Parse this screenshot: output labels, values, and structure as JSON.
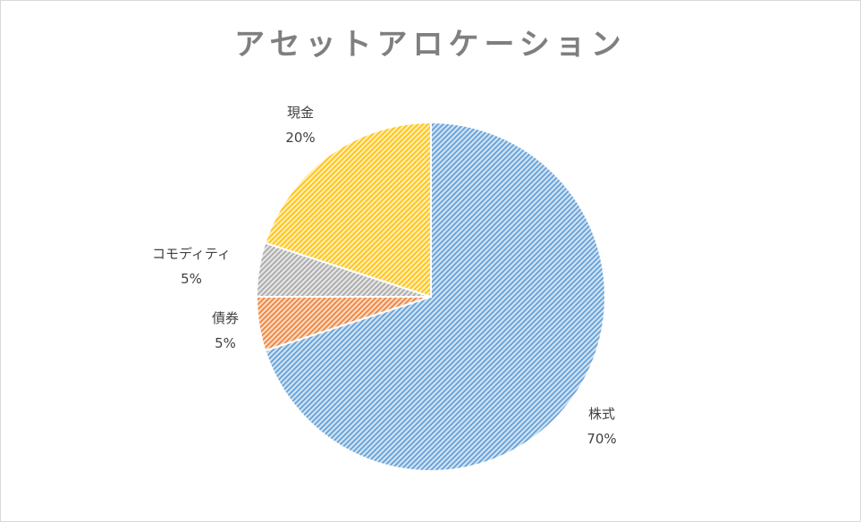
{
  "chart_data": {
    "type": "pie",
    "title": "アセットアロケーション",
    "slices": [
      {
        "label": "株式",
        "value": 70,
        "percent_label": "70%",
        "color": "#5b9bd5"
      },
      {
        "label": "債券",
        "value": 5,
        "percent_label": "5%",
        "color": "#ed7d31"
      },
      {
        "label": "コモディティ",
        "value": 5,
        "percent_label": "5%",
        "color": "#a5a5a5"
      },
      {
        "label": "現金",
        "value": 20,
        "percent_label": "20%",
        "color": "#ffc000"
      }
    ],
    "legend": "none",
    "data_labels": "category and percentage, outside end",
    "fill": "diagonal hatch pattern"
  }
}
